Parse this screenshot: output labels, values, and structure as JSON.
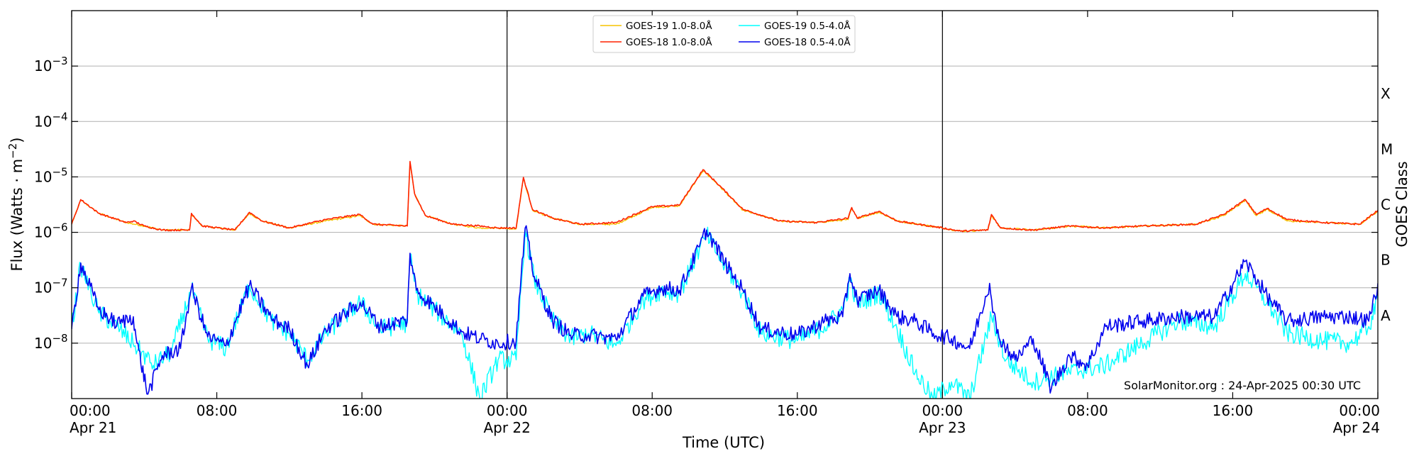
{
  "chart_data": {
    "type": "line",
    "xlabel": "Time (UTC)",
    "ylabel": "Flux (Watts · m",
    "ylabel_sup": "−2",
    "ylabel_close": ")",
    "right_label": "GOES Class",
    "y_scale": "log",
    "ylim": [
      1e-09,
      0.01
    ],
    "xlim_hours": [
      0,
      72
    ],
    "grid": "horizontal at each decade",
    "day_dividers_hours": [
      24,
      48
    ],
    "x_ticks": [
      {
        "h": 0,
        "time": "00:00",
        "date": "Apr 21"
      },
      {
        "h": 8,
        "time": "08:00",
        "date": ""
      },
      {
        "h": 16,
        "time": "16:00",
        "date": ""
      },
      {
        "h": 24,
        "time": "00:00",
        "date": "Apr 22"
      },
      {
        "h": 32,
        "time": "08:00",
        "date": ""
      },
      {
        "h": 40,
        "time": "16:00",
        "date": ""
      },
      {
        "h": 48,
        "time": "00:00",
        "date": "Apr 23"
      },
      {
        "h": 56,
        "time": "08:00",
        "date": ""
      },
      {
        "h": 64,
        "time": "16:00",
        "date": ""
      },
      {
        "h": 72,
        "time": "00:00",
        "date": "Apr 24"
      }
    ],
    "y_ticks": [
      {
        "exp": -8,
        "label": "−8"
      },
      {
        "exp": -7,
        "label": "−7"
      },
      {
        "exp": -6,
        "label": "−6"
      },
      {
        "exp": -5,
        "label": "−5"
      },
      {
        "exp": -4,
        "label": "−4"
      },
      {
        "exp": -3,
        "label": "−3"
      }
    ],
    "y_tick_base": "10",
    "goes_classes": [
      {
        "label": "A",
        "exp": -7.5
      },
      {
        "label": "B",
        "exp": -6.5
      },
      {
        "label": "C",
        "exp": -5.5
      },
      {
        "label": "M",
        "exp": -4.5
      },
      {
        "label": "X",
        "exp": -3.5
      }
    ],
    "legend_position": "top-center",
    "credit": "SolarMonitor.org : 24-Apr-2025 00:30 UTC",
    "series": [
      {
        "name": "GOES-19 1.0-8.0Å",
        "color": "#f5c400",
        "points": [
          [
            0,
            1.4e-06
          ],
          [
            0.5,
            3.8e-06
          ],
          [
            1.5,
            2.2e-06
          ],
          [
            3,
            1.5e-06
          ],
          [
            4,
            1.3e-06
          ],
          [
            5,
            1.1e-06
          ],
          [
            6.5,
            1.1e-06
          ],
          [
            6.6,
            2.1e-06
          ],
          [
            7.2,
            1.3e-06
          ],
          [
            9,
            1.1e-06
          ],
          [
            9.8,
            2.2e-06
          ],
          [
            10.5,
            1.6e-06
          ],
          [
            12,
            1.2e-06
          ],
          [
            14,
            1.6e-06
          ],
          [
            15.9,
            2e-06
          ],
          [
            16.6,
            1.4e-06
          ],
          [
            18.5,
            1.3e-06
          ],
          [
            18.65,
            1.8e-05
          ],
          [
            18.9,
            5e-06
          ],
          [
            19.5,
            2e-06
          ],
          [
            21,
            1.4e-06
          ],
          [
            22.5,
            1.2e-06
          ],
          [
            23.5,
            1.2e-06
          ],
          [
            24.5,
            1.15e-06
          ],
          [
            24.9,
            9.5e-06
          ],
          [
            25.4,
            2.5e-06
          ],
          [
            26.5,
            1.8e-06
          ],
          [
            28,
            1.4e-06
          ],
          [
            30,
            1.4e-06
          ],
          [
            32,
            2.8e-06
          ],
          [
            33.5,
            3e-06
          ],
          [
            34.8,
            1.3e-05
          ],
          [
            35.5,
            8e-06
          ],
          [
            37,
            2.5e-06
          ],
          [
            39,
            1.6e-06
          ],
          [
            41,
            1.5e-06
          ],
          [
            42.8,
            1.7e-06
          ],
          [
            43,
            2.7e-06
          ],
          [
            43.3,
            1.8e-06
          ],
          [
            44.5,
            2.3e-06
          ],
          [
            45.5,
            1.6e-06
          ],
          [
            48,
            1.2e-06
          ],
          [
            49,
            1.05e-06
          ],
          [
            50.5,
            1.1e-06
          ],
          [
            50.7,
            2e-06
          ],
          [
            51.2,
            1.2e-06
          ],
          [
            53,
            1.1e-06
          ],
          [
            55,
            1.3e-06
          ],
          [
            57,
            1.2e-06
          ],
          [
            59,
            1.3e-06
          ],
          [
            62,
            1.4e-06
          ],
          [
            63.5,
            2e-06
          ],
          [
            64.7,
            3.8e-06
          ],
          [
            65.3,
            2e-06
          ],
          [
            65.9,
            2.6e-06
          ],
          [
            67,
            1.6e-06
          ],
          [
            69,
            1.5e-06
          ],
          [
            71,
            1.4e-06
          ],
          [
            72,
            2.4e-06
          ]
        ]
      },
      {
        "name": "GOES-18 1.0-8.0Å",
        "color": "#ff2200",
        "points": [
          [
            0,
            1.4e-06
          ],
          [
            0.5,
            3.9e-06
          ],
          [
            1.5,
            2.2e-06
          ],
          [
            3,
            1.5e-06
          ],
          [
            3.4,
            1.6e-06
          ],
          [
            4,
            1.3e-06
          ],
          [
            5,
            1.1e-06
          ],
          [
            6.5,
            1.1e-06
          ],
          [
            6.6,
            2.2e-06
          ],
          [
            7.2,
            1.3e-06
          ],
          [
            9,
            1.1e-06
          ],
          [
            9.8,
            2.3e-06
          ],
          [
            10.5,
            1.6e-06
          ],
          [
            12,
            1.2e-06
          ],
          [
            14,
            1.7e-06
          ],
          [
            15.9,
            2.1e-06
          ],
          [
            16.6,
            1.4e-06
          ],
          [
            18.5,
            1.3e-06
          ],
          [
            18.65,
            1.9e-05
          ],
          [
            18.9,
            5e-06
          ],
          [
            19.5,
            2e-06
          ],
          [
            21,
            1.4e-06
          ],
          [
            22.5,
            1.3e-06
          ],
          [
            23.5,
            1.2e-06
          ],
          [
            24.5,
            1.2e-06
          ],
          [
            24.9,
            9.8e-06
          ],
          [
            25.4,
            2.6e-06
          ],
          [
            26.5,
            1.8e-06
          ],
          [
            28,
            1.4e-06
          ],
          [
            30,
            1.5e-06
          ],
          [
            32,
            2.9e-06
          ],
          [
            33.5,
            3.1e-06
          ],
          [
            34.8,
            1.35e-05
          ],
          [
            35.5,
            8.2e-06
          ],
          [
            37,
            2.6e-06
          ],
          [
            39,
            1.6e-06
          ],
          [
            41,
            1.5e-06
          ],
          [
            42.8,
            1.8e-06
          ],
          [
            43,
            2.8e-06
          ],
          [
            43.3,
            1.8e-06
          ],
          [
            44.5,
            2.4e-06
          ],
          [
            45.5,
            1.6e-06
          ],
          [
            48,
            1.2e-06
          ],
          [
            49,
            1.05e-06
          ],
          [
            50.5,
            1.1e-06
          ],
          [
            50.7,
            2.1e-06
          ],
          [
            51.2,
            1.2e-06
          ],
          [
            53,
            1.1e-06
          ],
          [
            55,
            1.3e-06
          ],
          [
            57,
            1.2e-06
          ],
          [
            59,
            1.3e-06
          ],
          [
            62,
            1.4e-06
          ],
          [
            63.5,
            2.1e-06
          ],
          [
            64.7,
            3.9e-06
          ],
          [
            65.3,
            2.1e-06
          ],
          [
            65.9,
            2.7e-06
          ],
          [
            67,
            1.7e-06
          ],
          [
            69,
            1.5e-06
          ],
          [
            71,
            1.4e-06
          ],
          [
            72,
            2.5e-06
          ]
        ]
      },
      {
        "name": "GOES-19 0.5-4.0Å",
        "color": "#00ffff",
        "points": [
          [
            0,
            1.8e-08
          ],
          [
            0.5,
            2.6e-07
          ],
          [
            1.5,
            3.5e-08
          ],
          [
            2.5,
            2e-08
          ],
          [
            3.5,
            9e-09
          ],
          [
            4.5,
            4e-09
          ],
          [
            5.5,
            7e-09
          ],
          [
            6.6,
            9.5e-08
          ],
          [
            7.5,
            1.2e-08
          ],
          [
            8.5,
            8e-09
          ],
          [
            9.8,
            1.1e-07
          ],
          [
            11,
            2.5e-08
          ],
          [
            12,
            1.5e-08
          ],
          [
            13,
            5e-09
          ],
          [
            14,
            1.5e-08
          ],
          [
            15.9,
            5.5e-08
          ],
          [
            17,
            1.8e-08
          ],
          [
            18.5,
            2.3e-08
          ],
          [
            18.65,
            4e-07
          ],
          [
            19,
            8e-08
          ],
          [
            20,
            4e-08
          ],
          [
            21.5,
            1.5e-08
          ],
          [
            22.5,
            1e-09
          ],
          [
            23.5,
            5e-09
          ],
          [
            24.5,
            5e-09
          ],
          [
            25,
            1.1e-06
          ],
          [
            25.5,
            1.4e-07
          ],
          [
            26.5,
            2.6e-08
          ],
          [
            27.5,
            1.2e-08
          ],
          [
            28.5,
            1.5e-08
          ],
          [
            30,
            9e-09
          ],
          [
            31.5,
            6e-08
          ],
          [
            32.5,
            9e-08
          ],
          [
            33.5,
            8e-08
          ],
          [
            34.6,
            5e-07
          ],
          [
            35,
            9e-07
          ],
          [
            36,
            2.5e-07
          ],
          [
            37,
            8e-08
          ],
          [
            38,
            1.5e-08
          ],
          [
            40,
            1.1e-08
          ],
          [
            41.5,
            2e-08
          ],
          [
            42.5,
            4e-08
          ],
          [
            42.9,
            1.3e-07
          ],
          [
            43.3,
            5e-08
          ],
          [
            44.5,
            8e-08
          ],
          [
            45.5,
            1.8e-08
          ],
          [
            46.5,
            3e-09
          ],
          [
            47.5,
            1e-09
          ],
          [
            48.5,
            2e-09
          ],
          [
            49.5,
            1e-09
          ],
          [
            50.7,
            3e-08
          ],
          [
            51.5,
            5e-09
          ],
          [
            53,
            2e-09
          ],
          [
            55,
            3e-09
          ],
          [
            57,
            4e-09
          ],
          [
            59,
            1e-08
          ],
          [
            61,
            2.5e-08
          ],
          [
            63,
            2e-08
          ],
          [
            64.7,
            1.8e-07
          ],
          [
            65.9,
            5.5e-08
          ],
          [
            67,
            1.5e-08
          ],
          [
            69,
            1.1e-08
          ],
          [
            70.5,
            1e-08
          ],
          [
            71.5,
            2e-08
          ],
          [
            72,
            6e-08
          ]
        ]
      },
      {
        "name": "GOES-18 0.5-4.0Å",
        "color": "#0000ee",
        "points": [
          [
            0,
            1.8e-08
          ],
          [
            0.5,
            2.8e-07
          ],
          [
            1.5,
            4e-08
          ],
          [
            2.5,
            2.2e-08
          ],
          [
            3.4,
            3e-08
          ],
          [
            3.6,
            1e-08
          ],
          [
            4.2,
            1.2e-09
          ],
          [
            5,
            6e-09
          ],
          [
            6,
            8e-09
          ],
          [
            6.6,
            1e-07
          ],
          [
            7.5,
            1.3e-08
          ],
          [
            8.5,
            9e-09
          ],
          [
            9.8,
            1.1e-07
          ],
          [
            11,
            2.8e-08
          ],
          [
            12,
            1.8e-08
          ],
          [
            13,
            4e-09
          ],
          [
            14,
            1.8e-08
          ],
          [
            15.9,
            5.5e-08
          ],
          [
            17,
            2e-08
          ],
          [
            18.5,
            2.6e-08
          ],
          [
            18.65,
            4.2e-07
          ],
          [
            19,
            9e-08
          ],
          [
            20,
            4.5e-08
          ],
          [
            21.5,
            1.6e-08
          ],
          [
            22.5,
            1.2e-08
          ],
          [
            23.5,
            1e-08
          ],
          [
            24.5,
            1.1e-08
          ],
          [
            25,
            1.2e-06
          ],
          [
            25.5,
            1.6e-07
          ],
          [
            26.5,
            2.6e-08
          ],
          [
            27.5,
            1.4e-08
          ],
          [
            28.5,
            1.4e-08
          ],
          [
            30,
            1.2e-08
          ],
          [
            31.5,
            7e-08
          ],
          [
            32.5,
            1e-07
          ],
          [
            33.5,
            9e-08
          ],
          [
            34.6,
            5.5e-07
          ],
          [
            35,
            1.1e-06
          ],
          [
            36,
            2.8e-07
          ],
          [
            37,
            9e-08
          ],
          [
            38,
            1.8e-08
          ],
          [
            40,
            1.4e-08
          ],
          [
            41.5,
            2.5e-08
          ],
          [
            42.5,
            3e-08
          ],
          [
            42.9,
            1.8e-07
          ],
          [
            43.3,
            6e-08
          ],
          [
            44.5,
            9e-08
          ],
          [
            45.5,
            3e-08
          ],
          [
            46.5,
            2.5e-08
          ],
          [
            47.5,
            1.5e-08
          ],
          [
            48.5,
            1.2e-08
          ],
          [
            49.5,
            8e-09
          ],
          [
            50.6,
            1.2e-07
          ],
          [
            51,
            1.5e-08
          ],
          [
            52,
            5e-09
          ],
          [
            53,
            1.2e-08
          ],
          [
            54,
            1.5e-09
          ],
          [
            55,
            6e-09
          ],
          [
            56,
            4e-09
          ],
          [
            57,
            2e-08
          ],
          [
            59,
            2.5e-08
          ],
          [
            61,
            3e-08
          ],
          [
            63,
            3e-08
          ],
          [
            64.7,
            3e-07
          ],
          [
            65.9,
            7e-08
          ],
          [
            67,
            2.5e-08
          ],
          [
            69,
            3e-08
          ],
          [
            70.5,
            3e-08
          ],
          [
            71.5,
            2.5e-08
          ],
          [
            72,
            1.2e-07
          ]
        ]
      }
    ]
  }
}
